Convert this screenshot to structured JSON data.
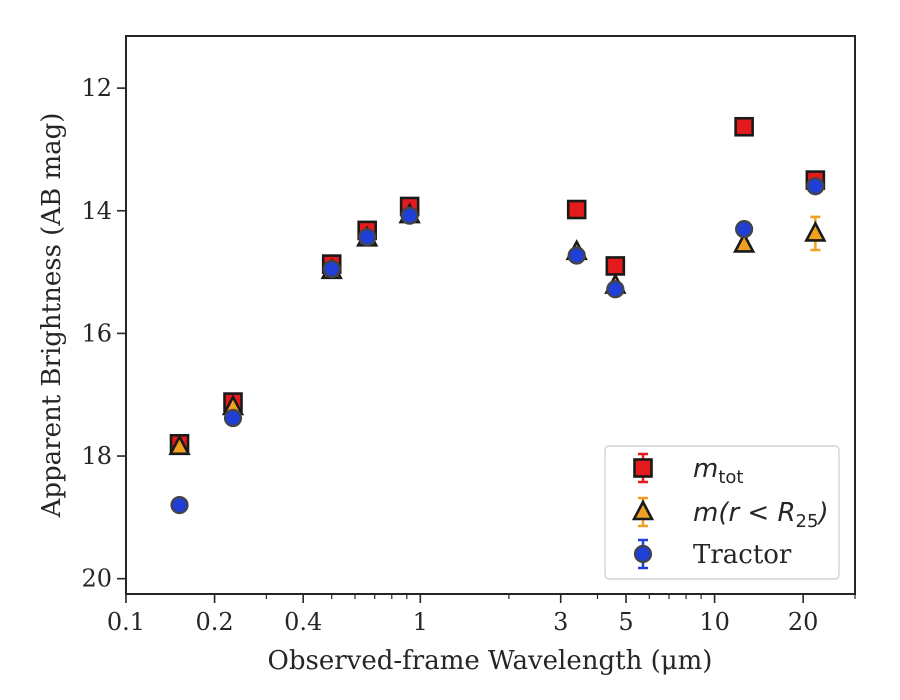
{
  "chart_data": {
    "type": "scatter",
    "title": "",
    "xlabel": "Observed-frame Wavelength (μm)",
    "ylabel": "Apparent Brightness (AB mag)",
    "xscale": "log",
    "xlim": [
      0.1,
      30
    ],
    "ylim": [
      20.25,
      11.15
    ],
    "y_inverted": true,
    "x_ticks": [
      0.1,
      0.2,
      0.4,
      1,
      3,
      5,
      10,
      20
    ],
    "x_tick_labels": [
      "0.1",
      "0.2",
      "0.4",
      "1",
      "3",
      "5",
      "10",
      "20"
    ],
    "y_ticks": [
      12,
      14,
      16,
      18,
      20
    ],
    "y_tick_labels": [
      "12",
      "14",
      "16",
      "18",
      "20"
    ],
    "grid": false,
    "legend_position": "lower-right",
    "series": [
      {
        "name": "m_tot",
        "legend_base": "m",
        "legend_sub": "tot",
        "marker": "square",
        "color": "#e41a1c",
        "edge": "#1a1a1a",
        "x": [
          0.152,
          0.231,
          0.5,
          0.66,
          0.92,
          3.4,
          4.6,
          12.6,
          22.0
        ],
        "y": [
          17.8,
          17.12,
          14.87,
          14.32,
          13.93,
          13.98,
          14.9,
          12.63,
          13.5
        ]
      },
      {
        "name": "m(r<R_25)",
        "legend_base": "m(r < R",
        "legend_sub": "25",
        "legend_tail": ")",
        "marker": "triangle",
        "color": "#f0a020",
        "edge": "#1a1a1a",
        "x": [
          0.152,
          0.231,
          0.5,
          0.66,
          0.92,
          3.4,
          4.6,
          12.6,
          22.0
        ],
        "y": [
          17.85,
          17.2,
          14.98,
          14.45,
          14.07,
          14.67,
          15.22,
          14.55,
          14.37
        ],
        "yerr": [
          0.03,
          0.03,
          0.02,
          0.02,
          0.02,
          0.04,
          0.05,
          0.05,
          0.27
        ]
      },
      {
        "name": "Tractor",
        "marker": "circle",
        "color": "#1f3fd6",
        "edge": "#444444",
        "x": [
          0.152,
          0.231,
          0.5,
          0.66,
          0.92,
          3.4,
          4.6,
          12.6,
          22.0
        ],
        "y": [
          18.8,
          17.38,
          14.95,
          14.43,
          14.08,
          14.73,
          15.28,
          14.3,
          13.6
        ]
      }
    ]
  }
}
